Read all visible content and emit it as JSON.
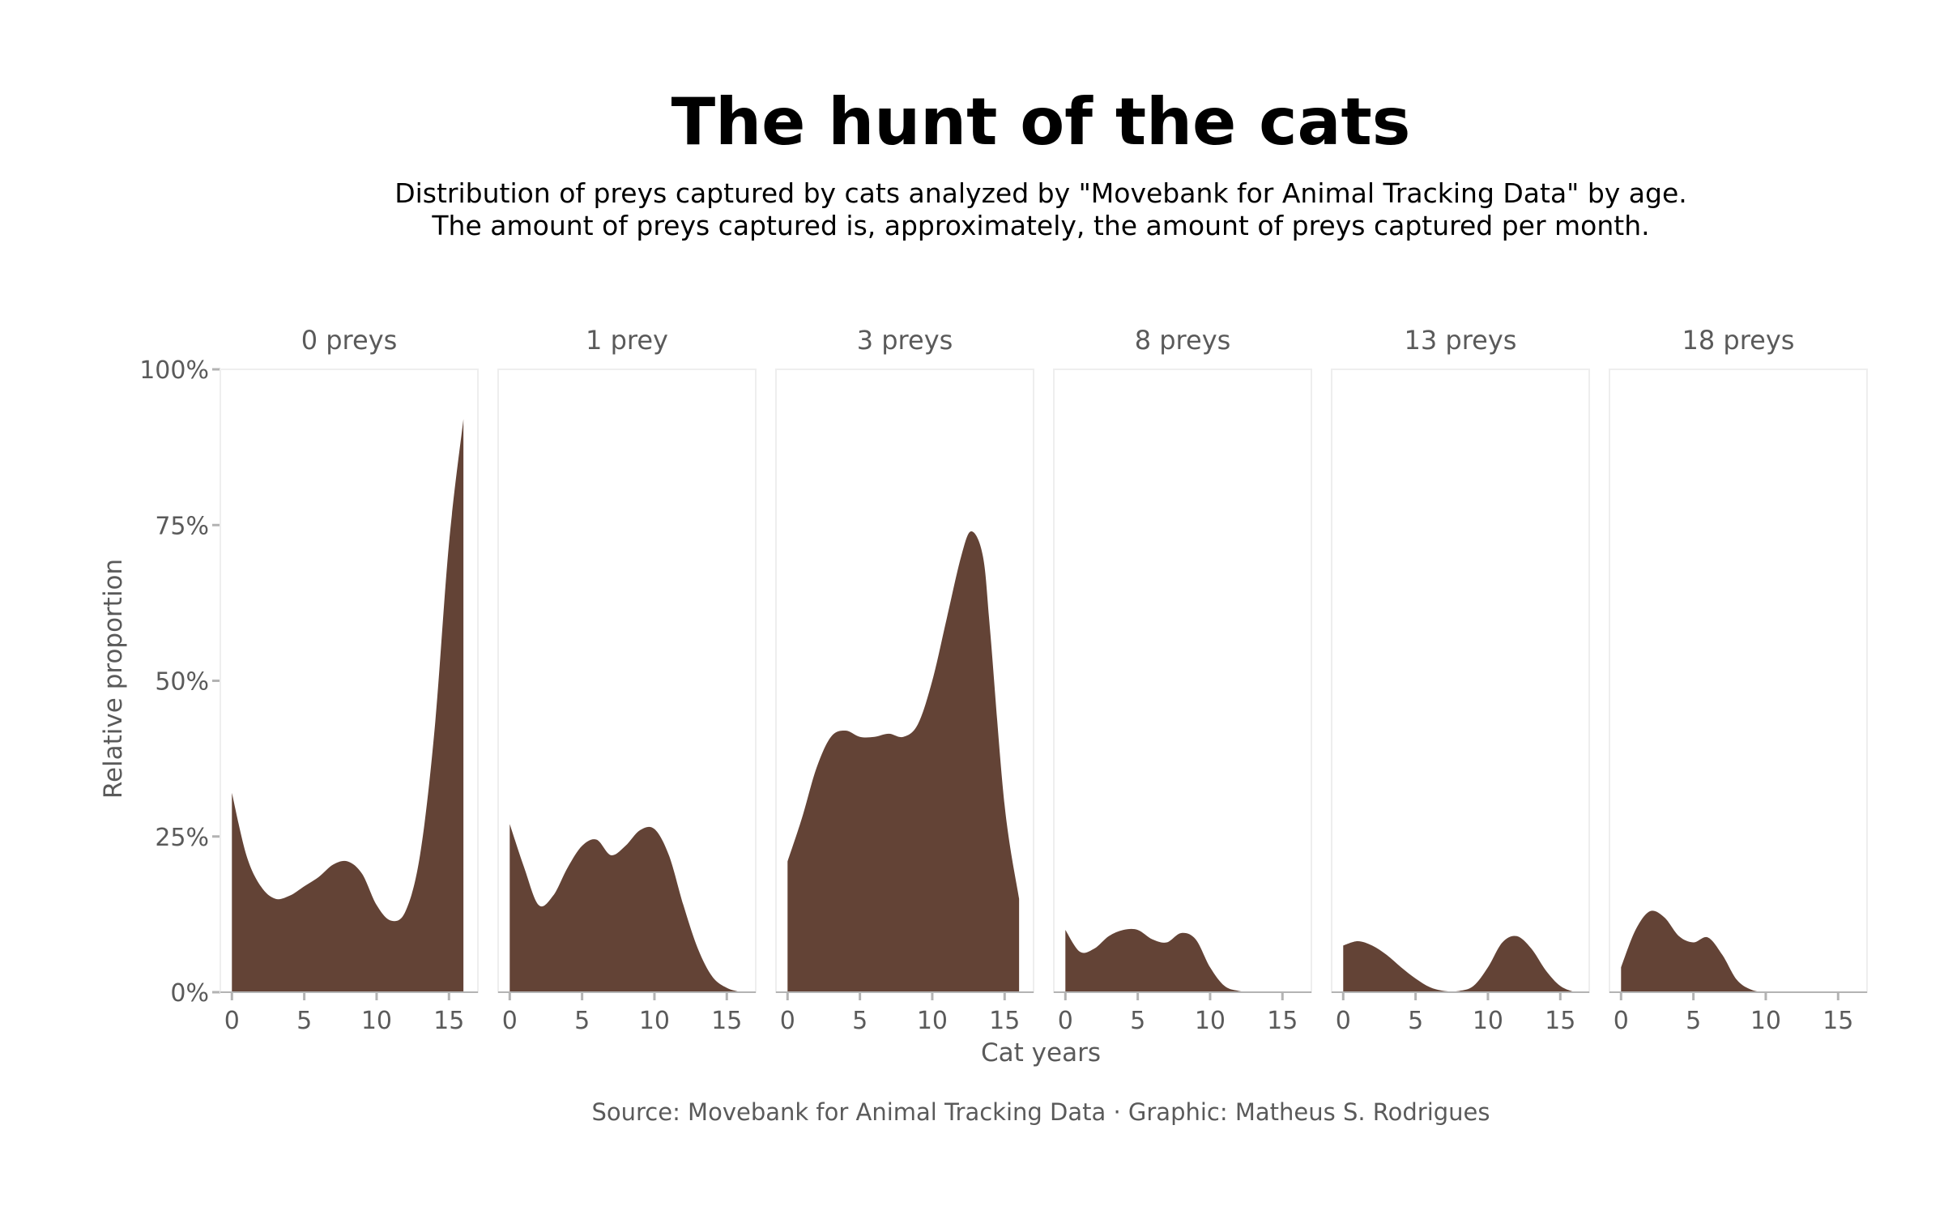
{
  "title": "The hunt of the cats",
  "subtitle_lines": [
    "Distribution of preys captured by cats analyzed by \"Movebank for Animal Tracking Data\" by age.",
    "The amount of preys captured is, approximately, the amount of preys captured per month."
  ],
  "caption": "Source: Movebank for Animal Tracking Data · Graphic: Matheus S. Rodrigues",
  "colors": {
    "fill": "#634336",
    "panel_border": "#eeeeee",
    "tick": "#b3b3b3",
    "text_muted": "#5a5a5a"
  },
  "chart_data": {
    "type": "area",
    "xlabel": "Cat years",
    "ylabel": "Relative proportion",
    "xlim": [
      -0.8,
      17
    ],
    "ylim": [
      0,
      1
    ],
    "x_ticks": [
      0,
      5,
      10,
      15
    ],
    "x_tick_labels": [
      "0",
      "5",
      "10",
      "15"
    ],
    "y_ticks": [
      0,
      0.25,
      0.5,
      0.75,
      1.0
    ],
    "y_tick_labels": [
      "0%",
      "25%",
      "50%",
      "75%",
      "100%"
    ],
    "grid": false,
    "panels": [
      {
        "label": "0 preys",
        "x": [
          0,
          1,
          2,
          3,
          4,
          5,
          6,
          7,
          8,
          9,
          10,
          11,
          12,
          13,
          14,
          15,
          16
        ],
        "y": [
          0.32,
          0.22,
          0.17,
          0.15,
          0.155,
          0.17,
          0.185,
          0.205,
          0.21,
          0.19,
          0.14,
          0.115,
          0.13,
          0.22,
          0.42,
          0.72,
          0.92
        ]
      },
      {
        "label": "1 prey",
        "x": [
          0,
          1,
          2,
          3,
          4,
          5,
          6,
          7,
          8,
          9,
          10,
          11,
          12,
          13,
          14,
          15,
          16
        ],
        "y": [
          0.27,
          0.2,
          0.14,
          0.155,
          0.2,
          0.235,
          0.245,
          0.22,
          0.235,
          0.26,
          0.262,
          0.22,
          0.14,
          0.07,
          0.025,
          0.007,
          0.0
        ]
      },
      {
        "label": "3 preys",
        "x": [
          0,
          1,
          2,
          3,
          4,
          5,
          6,
          7,
          8,
          9,
          10,
          11,
          12,
          12.7,
          13.5,
          14,
          15,
          16
        ],
        "y": [
          0.21,
          0.28,
          0.36,
          0.41,
          0.42,
          0.41,
          0.41,
          0.415,
          0.41,
          0.43,
          0.5,
          0.6,
          0.7,
          0.74,
          0.7,
          0.58,
          0.3,
          0.15
        ]
      },
      {
        "label": "8 preys",
        "x": [
          0,
          1,
          2,
          3,
          4,
          5,
          6,
          7,
          8,
          9,
          10,
          11,
          12,
          13,
          14,
          15,
          16
        ],
        "y": [
          0.1,
          0.065,
          0.07,
          0.09,
          0.1,
          0.1,
          0.085,
          0.08,
          0.095,
          0.085,
          0.04,
          0.01,
          0.002,
          0.0,
          0.0,
          0.0,
          0.0
        ]
      },
      {
        "label": "13 preys",
        "x": [
          0,
          1,
          2,
          3,
          4,
          5,
          6,
          7,
          8,
          9,
          10,
          11,
          12,
          13,
          14,
          15,
          16
        ],
        "y": [
          0.075,
          0.082,
          0.075,
          0.06,
          0.04,
          0.022,
          0.008,
          0.002,
          0.002,
          0.01,
          0.04,
          0.08,
          0.09,
          0.07,
          0.035,
          0.01,
          0.0
        ]
      },
      {
        "label": "18 preys",
        "x": [
          0,
          1,
          2,
          3,
          4,
          5,
          6,
          7,
          8,
          9,
          10,
          11,
          12,
          13,
          14,
          15,
          16
        ],
        "y": [
          0.04,
          0.1,
          0.13,
          0.12,
          0.09,
          0.08,
          0.088,
          0.06,
          0.02,
          0.004,
          0.0,
          0.0,
          0.0,
          0.0,
          0.0,
          0.0,
          0.0
        ]
      }
    ]
  }
}
